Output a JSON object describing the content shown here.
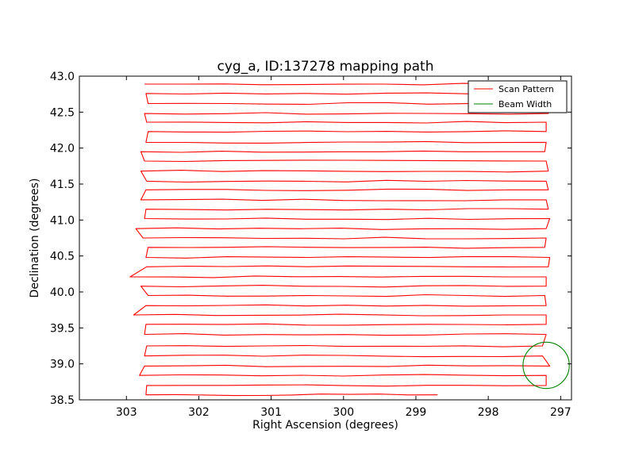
{
  "chart_data": {
    "type": "line",
    "title": "cyg_a, ID:137278 mapping path",
    "xlabel": "Right Ascension (degrees)",
    "ylabel": "Declination (degrees)",
    "xlim": [
      303.65,
      296.85
    ],
    "ylim": [
      38.5,
      43.0
    ],
    "x_ticks": [
      "303",
      "302",
      "301",
      "300",
      "299",
      "298",
      "297"
    ],
    "y_ticks": [
      "38.5",
      "39.0",
      "39.5",
      "40.0",
      "40.5",
      "41.0",
      "41.5",
      "42.0",
      "42.5",
      "43.0"
    ],
    "x_tick_values": [
      303,
      302,
      301,
      300,
      299,
      298,
      297
    ],
    "y_tick_values": [
      38.5,
      39.0,
      39.5,
      40.0,
      40.5,
      41.0,
      41.5,
      42.0,
      42.5,
      43.0
    ],
    "grid": false,
    "legend_position": "top-right",
    "series": [
      {
        "name": "Scan Pattern",
        "color": "#ff0000",
        "type": "line",
        "scan_rows": {
          "dec": [
            42.89,
            42.76,
            42.62,
            42.48,
            42.36,
            42.23,
            42.08,
            41.95,
            41.82,
            41.68,
            41.54,
            41.42,
            41.28,
            41.15,
            41.02,
            40.88,
            40.75,
            40.62,
            40.48,
            40.35,
            40.21,
            40.08,
            39.95,
            39.81,
            39.68,
            39.55,
            39.41,
            39.25,
            39.11,
            38.97,
            38.84,
            38.7,
            38.57
          ],
          "ra_east": [
            302.75,
            302.73,
            302.7,
            302.75,
            302.72,
            302.7,
            302.73,
            302.8,
            302.75,
            302.8,
            302.72,
            302.73,
            302.8,
            302.73,
            302.75,
            302.87,
            302.77,
            302.7,
            302.73,
            302.72,
            302.95,
            302.8,
            302.7,
            302.73,
            302.9,
            302.73,
            302.75,
            302.72,
            302.75,
            302.75,
            302.82,
            302.72,
            302.73
          ],
          "ra_west": [
            297.25,
            297.2,
            297.17,
            297.17,
            297.2,
            297.2,
            297.2,
            297.22,
            297.2,
            297.17,
            297.2,
            297.17,
            297.2,
            297.17,
            297.15,
            297.2,
            297.2,
            297.22,
            297.15,
            297.17,
            297.2,
            297.2,
            297.22,
            297.2,
            297.2,
            297.2,
            297.2,
            297.25,
            297.25,
            297.15,
            297.2,
            297.2,
            298.7
          ]
        }
      },
      {
        "name": "Beam Width",
        "color": "#008000",
        "type": "circle",
        "center": [
          297.2,
          38.98
        ],
        "radius_deg": 0.32
      }
    ]
  }
}
